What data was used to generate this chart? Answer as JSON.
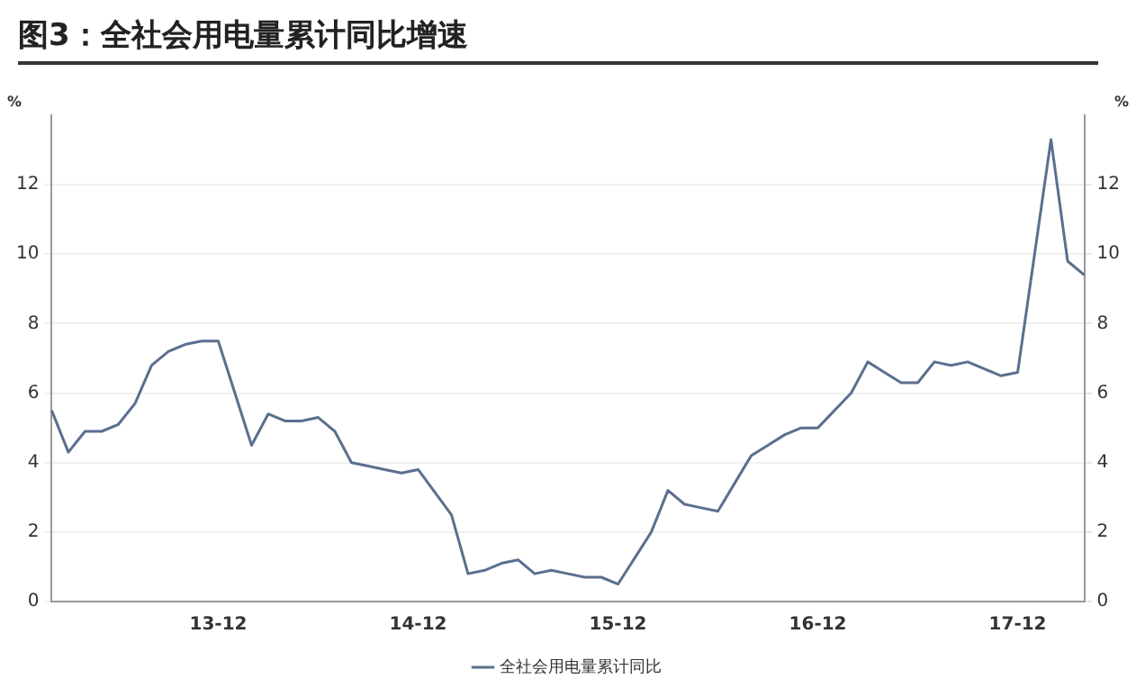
{
  "chart_data": {
    "type": "line",
    "title": "图3：全社会用电量累计同比增速",
    "categories": [
      null,
      null,
      null,
      null,
      null,
      null,
      null,
      null,
      null,
      null,
      "13-12",
      null,
      null,
      null,
      null,
      null,
      null,
      null,
      null,
      null,
      null,
      null,
      "14-12",
      null,
      null,
      null,
      null,
      null,
      null,
      null,
      null,
      null,
      null,
      null,
      "15-12",
      null,
      null,
      null,
      null,
      null,
      null,
      null,
      null,
      null,
      null,
      null,
      "16-12",
      null,
      null,
      null,
      null,
      null,
      null,
      null,
      null,
      null,
      null,
      null,
      "17-12",
      null,
      null,
      null,
      null
    ],
    "series": [
      {
        "name": "全社会用电量累计同比",
        "color": "#5b6f8e",
        "values": [
          5.5,
          4.3,
          4.9,
          4.9,
          5.1,
          5.7,
          6.8,
          7.2,
          7.4,
          7.5,
          7.5,
          null,
          4.5,
          5.4,
          5.2,
          5.2,
          5.3,
          4.9,
          4.0,
          3.9,
          3.8,
          3.7,
          3.8,
          null,
          2.5,
          0.8,
          0.9,
          1.1,
          1.2,
          0.8,
          0.9,
          0.8,
          0.7,
          0.7,
          0.5,
          null,
          2.0,
          3.2,
          2.8,
          2.7,
          2.6,
          3.4,
          4.2,
          4.5,
          4.8,
          5.0,
          5.0,
          null,
          6.0,
          6.9,
          6.6,
          6.3,
          6.3,
          6.9,
          6.8,
          6.9,
          6.7,
          6.5,
          6.6,
          null,
          13.3,
          9.8,
          9.4
        ]
      }
    ],
    "ylabel": "%",
    "y2label": "%",
    "ylim": [
      0,
      14
    ],
    "yticks": [
      0,
      2,
      4,
      6,
      8,
      10,
      12
    ],
    "y2lim": [
      0,
      14
    ],
    "y2ticks": [
      0,
      2,
      4,
      6,
      8,
      10,
      12
    ],
    "grid": "y",
    "legend": "bottom",
    "marker": "none",
    "line_style": "solid"
  }
}
